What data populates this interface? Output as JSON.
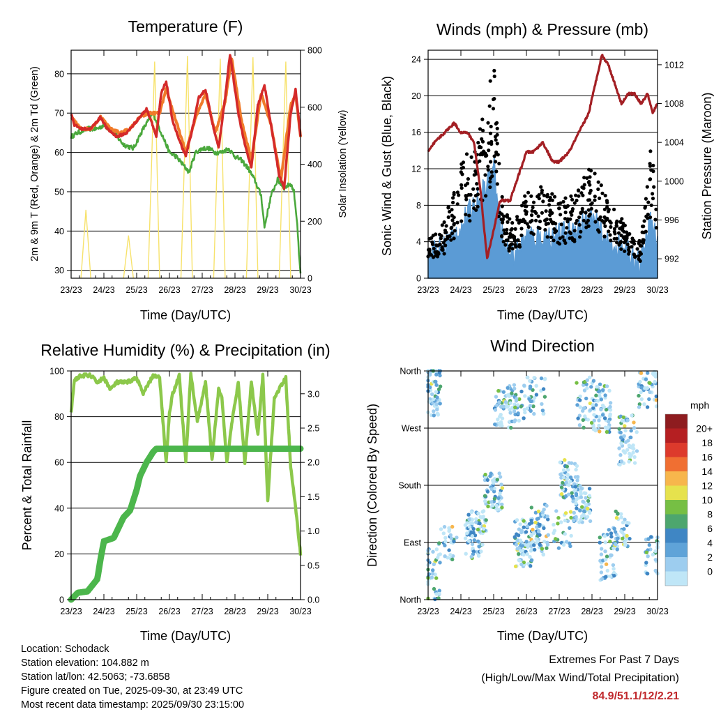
{
  "panels": {
    "temperature": {
      "title": "Temperature (F)",
      "ylabel_left": "2m & 9m T (Red, Orange) & 2m Td (Green)",
      "ylabel_right": "Solar Insolation (Yellow)",
      "xlabel": "Time (Day/UTC)"
    },
    "winds": {
      "title": "Winds (mph) & Pressure (mb)",
      "ylabel_left": "Sonic Wind & Gust (Blue, Black)",
      "ylabel_right": "Station Pressure (Maroon)",
      "xlabel": "Time (Day/UTC)"
    },
    "humidity": {
      "title": "Relative Humidity (%) & Precipitation (in)",
      "ylabel_left": "Percent & Total Rainfall",
      "xlabel": "Time (Day/UTC)"
    },
    "direction": {
      "title": "Wind Direction",
      "ylabel_left": "Direction (Colored By Speed)",
      "xlabel": "Time (Day/UTC)",
      "legend_title": "mph"
    }
  },
  "info": {
    "location": "Location: Schodack",
    "elevation": "Station elevation: 104.882 m",
    "latlon": "Station lat/lon: 42.5063; -73.6858",
    "created": "Figure created on Tue, 2025-09-30, at 23:49 UTC",
    "recent": "Most recent data timestamp: 2025/09/30 23:15:00"
  },
  "extremes": {
    "line1": "Extremes For Past 7 Days",
    "line2": "(High/Low/Max Wind/Total Precipitation)",
    "values": "84.9/51.1/12/2.21"
  },
  "colors": {
    "temp_2m": "#d42a2a",
    "temp_9m": "#f07b2a",
    "dewpoint": "#4aa83c",
    "solar": "#f7e26b",
    "wind": "#5b9bd5",
    "gust": "#000000",
    "pressure": "#a31f24",
    "rh": "#8cc84b",
    "precip": "#4cb64c"
  },
  "chart_data": [
    {
      "type": "line",
      "id": "temperature",
      "x_tick_labels": [
        "23/23",
        "24/23",
        "25/23",
        "26/23",
        "27/23",
        "28/23",
        "29/23",
        "30/23"
      ],
      "ylim_left": [
        28,
        86
      ],
      "yticks_left": [
        "30",
        "40",
        "50",
        "60",
        "70",
        "80"
      ],
      "ylim_right": [
        0,
        800
      ],
      "yticks_right": [
        "0",
        "200",
        "400",
        "600",
        "800"
      ],
      "series": [
        {
          "name": "2m T",
          "axis": "left",
          "x": [
            0,
            0.1,
            0.3,
            0.6,
            0.9,
            1.1,
            1.4,
            1.7,
            2.0,
            2.3,
            2.45,
            2.6,
            2.75,
            2.9,
            3.1,
            3.3,
            3.5,
            3.7,
            3.9,
            4.1,
            4.3,
            4.5,
            4.7,
            4.85,
            5.1,
            5.3,
            5.5,
            5.7,
            5.9,
            6.1,
            6.35,
            6.5,
            6.7,
            6.85,
            7.0
          ],
          "values": [
            70,
            67,
            66,
            66,
            69,
            66,
            64,
            65,
            68,
            71,
            68,
            64,
            75,
            78,
            68,
            63,
            59,
            66,
            74,
            76,
            68,
            61,
            74,
            85,
            70,
            62,
            56,
            72,
            77,
            67,
            54,
            51,
            70,
            76,
            64
          ]
        },
        {
          "name": "9m T",
          "axis": "left",
          "x": [
            0,
            0.3,
            0.6,
            0.9,
            1.2,
            1.5,
            1.8,
            2.1,
            2.4,
            2.7,
            2.9,
            3.2,
            3.5,
            3.8,
            4.1,
            4.4,
            4.7,
            4.9,
            5.2,
            5.5,
            5.8,
            6.1,
            6.4,
            6.7,
            6.85,
            7.0
          ],
          "values": [
            69,
            66,
            66,
            69,
            66,
            65,
            66,
            69,
            70,
            70,
            76,
            68,
            60,
            69,
            75,
            65,
            73,
            84,
            68,
            58,
            75,
            67,
            53,
            72,
            75,
            64
          ]
        },
        {
          "name": "2m Td",
          "axis": "left",
          "x": [
            0,
            0.2,
            0.5,
            0.8,
            1.0,
            1.3,
            1.6,
            1.9,
            2.2,
            2.5,
            2.8,
            3.0,
            3.2,
            3.4,
            3.6,
            3.8,
            4.0,
            4.2,
            4.4,
            4.6,
            4.8,
            5.0,
            5.2,
            5.4,
            5.6,
            5.8,
            5.9,
            6.1,
            6.3,
            6.5,
            6.7,
            6.8,
            6.9,
            6.95,
            7.0
          ],
          "values": [
            64,
            65,
            66,
            66,
            67,
            65,
            62,
            61,
            66,
            70,
            64,
            60,
            59,
            57,
            55,
            60,
            61,
            61,
            60,
            60,
            61,
            59,
            58,
            56,
            53,
            49,
            41,
            49,
            53,
            51,
            52,
            50,
            42,
            34,
            29
          ]
        },
        {
          "name": "Solar",
          "axis": "right",
          "x": [
            0.3,
            0.45,
            0.6,
            1.6,
            1.75,
            1.9,
            2.35,
            2.55,
            2.7,
            3.35,
            3.55,
            3.7,
            4.35,
            4.55,
            4.7,
            5.35,
            5.55,
            5.7,
            6.35,
            6.55,
            6.7
          ],
          "values": [
            0,
            240,
            0,
            0,
            150,
            0,
            0,
            760,
            0,
            0,
            780,
            0,
            0,
            770,
            0,
            0,
            775,
            0,
            0,
            760,
            0
          ]
        }
      ]
    },
    {
      "type": "line",
      "id": "winds",
      "x_tick_labels": [
        "23/23",
        "24/23",
        "25/23",
        "26/23",
        "27/23",
        "28/23",
        "29/23",
        "30/23"
      ],
      "ylim_left": [
        0,
        25
      ],
      "yticks_left": [
        "0",
        "4",
        "8",
        "12",
        "16",
        "20",
        "24"
      ],
      "ylim_right": [
        990,
        1013.5
      ],
      "yticks_right": [
        "992",
        "996",
        "1000",
        "1004",
        "1008",
        "1012"
      ],
      "series": [
        {
          "name": "Pressure",
          "axis": "right",
          "x": [
            0,
            0.2,
            0.5,
            0.8,
            1.0,
            1.2,
            1.4,
            1.6,
            1.8,
            2.0,
            2.2,
            2.5,
            2.8,
            3.0,
            3.2,
            3.5,
            3.8,
            4.0,
            4.3,
            4.6,
            4.9,
            5.1,
            5.3,
            5.5,
            5.7,
            5.9,
            6.1,
            6.3,
            6.5,
            6.7,
            6.85,
            7.0
          ],
          "values": [
            1003,
            1004,
            1005,
            1006,
            1005,
            1005,
            1004,
            999,
            992,
            995,
            998,
            998,
            1001,
            1003,
            1003,
            1004,
            1002,
            1002,
            1003,
            1005,
            1007,
            1010,
            1013,
            1012,
            1010,
            1008,
            1009,
            1009,
            1008,
            1009,
            1007,
            1008
          ]
        },
        {
          "name": "Wind",
          "axis": "left",
          "x": [
            0,
            0.5,
            1.0,
            1.5,
            1.8,
            2.0,
            2.3,
            2.6,
            3.0,
            3.5,
            4.0,
            4.5,
            5.0,
            5.5,
            5.8,
            6.2,
            6.5,
            6.8,
            7.0
          ],
          "values": [
            2,
            3,
            5,
            8,
            10,
            12,
            3,
            2,
            4,
            4,
            4,
            5,
            6,
            3,
            3,
            2,
            1,
            6,
            3
          ]
        },
        {
          "name": "Gust",
          "axis": "left",
          "x": [
            0,
            0.5,
            1.0,
            1.5,
            1.8,
            2.0,
            2.3,
            2.6,
            3.0,
            3.5,
            4.0,
            4.5,
            5.0,
            5.5,
            5.8,
            6.2,
            6.5,
            6.8,
            7.0
          ],
          "values": [
            4,
            6,
            12,
            15,
            19,
            23,
            7,
            6,
            9,
            10,
            8,
            9,
            12,
            8,
            7,
            5,
            4,
            14,
            8
          ]
        }
      ]
    },
    {
      "type": "line",
      "id": "humidity",
      "x_tick_labels": [
        "23/23",
        "24/23",
        "25/23",
        "26/23",
        "27/23",
        "28/23",
        "29/23",
        "30/23"
      ],
      "ylim_left": [
        0,
        100
      ],
      "yticks_left": [
        "0",
        "20",
        "40",
        "60",
        "80",
        "100"
      ],
      "ylim_right": [
        0,
        3.333
      ],
      "yticks_right": [
        "0.0",
        "0.5",
        "1.0",
        "1.5",
        "2.0",
        "2.5",
        "3.0"
      ],
      "series": [
        {
          "name": "RH",
          "axis": "left",
          "x": [
            0,
            0.1,
            0.3,
            0.6,
            0.8,
            1.0,
            1.2,
            1.4,
            1.7,
            2.0,
            2.2,
            2.5,
            2.7,
            2.9,
            3.0,
            3.1,
            3.3,
            3.5,
            3.65,
            3.85,
            4.1,
            4.3,
            4.5,
            4.6,
            4.75,
            4.95,
            5.1,
            5.3,
            5.5,
            5.7,
            5.85,
            6.0,
            6.2,
            6.35,
            6.55,
            6.7,
            6.85,
            7.0
          ],
          "values": [
            82,
            96,
            98,
            98,
            95,
            97,
            92,
            95,
            95,
            97,
            90,
            98,
            97,
            60,
            82,
            90,
            98,
            60,
            99,
            78,
            95,
            61,
            92,
            88,
            60,
            82,
            95,
            60,
            95,
            72,
            98,
            43,
            88,
            92,
            97,
            58,
            40,
            20
          ]
        },
        {
          "name": "Precip",
          "axis": "right",
          "x": [
            0,
            0.2,
            0.5,
            0.8,
            0.9,
            1.0,
            1.3,
            1.6,
            1.8,
            2.0,
            2.1,
            2.3,
            2.5,
            2.6,
            7.0
          ],
          "values": [
            0,
            0.1,
            0.12,
            0.3,
            0.6,
            0.85,
            0.9,
            1.2,
            1.3,
            1.6,
            1.8,
            2.0,
            2.15,
            2.2,
            2.2
          ]
        }
      ]
    },
    {
      "type": "scatter",
      "id": "direction",
      "x_tick_labels": [
        "23/23",
        "24/23",
        "25/23",
        "26/23",
        "27/23",
        "28/23",
        "29/23",
        "30/23"
      ],
      "y_tick_labels": [
        "North",
        "East",
        "South",
        "West",
        "North"
      ],
      "ylim": [
        0,
        360
      ],
      "legend_labels": [
        "0",
        "2",
        "4",
        "6",
        "8",
        "10",
        "12",
        "14",
        "16",
        "18",
        "20+"
      ],
      "legend_colors": [
        "#bfe6f7",
        "#9dcdef",
        "#5fa3d8",
        "#3f86c4",
        "#4da66e",
        "#76bf44",
        "#e6e24d",
        "#f7b64c",
        "#f06f32",
        "#dd3a2c",
        "#b51f22",
        "#8e1c1f"
      ]
    }
  ]
}
